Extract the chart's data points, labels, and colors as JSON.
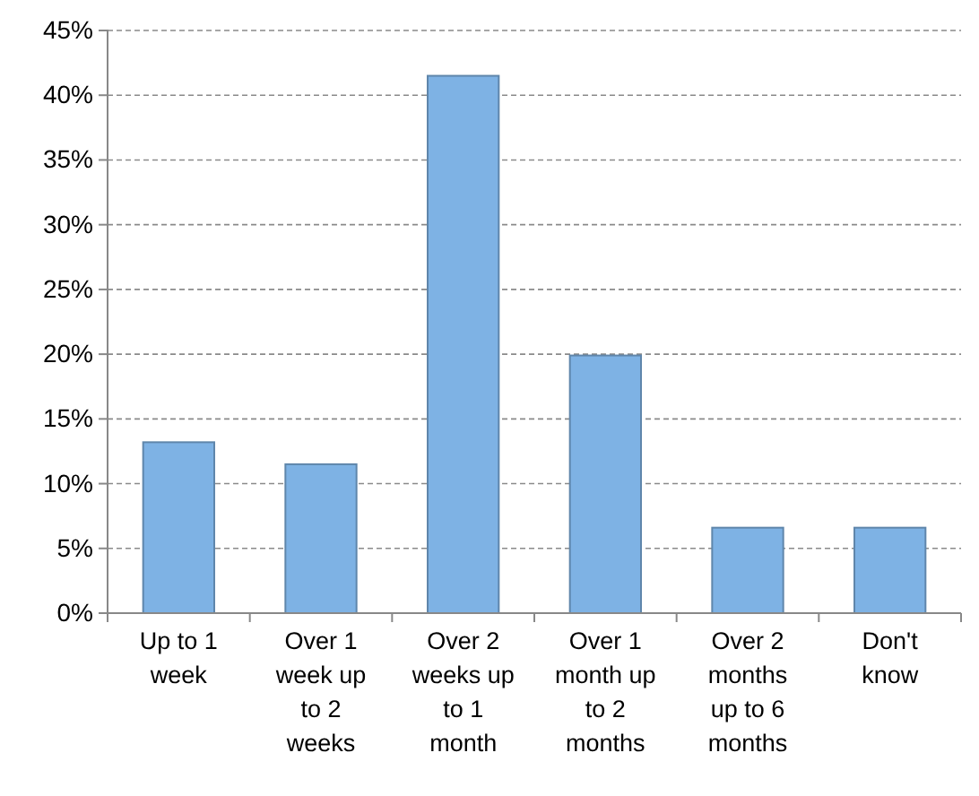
{
  "chart_data": {
    "type": "bar",
    "categories": [
      "Up to 1 week",
      "Over 1 week up to 2 weeks",
      "Over 2 weeks up to 1 month",
      "Over 1 month up to 2 months",
      "Over 2 months up to 6 months",
      "Don't know"
    ],
    "values": [
      13.2,
      11.5,
      41.5,
      19.9,
      6.6,
      6.6
    ],
    "color": "#7eb2e4",
    "ylim": [
      0,
      45
    ],
    "yticks": [
      {
        "value": 0,
        "label": "0%"
      },
      {
        "value": 5,
        "label": "5%"
      },
      {
        "value": 10,
        "label": "10%"
      },
      {
        "value": 15,
        "label": "15%"
      },
      {
        "value": 20,
        "label": "20%"
      },
      {
        "value": 25,
        "label": "25%"
      },
      {
        "value": 30,
        "label": "30%"
      },
      {
        "value": 35,
        "label": "35%"
      },
      {
        "value": 40,
        "label": "40%"
      },
      {
        "value": 45,
        "label": "45%"
      }
    ],
    "grid": "y"
  }
}
